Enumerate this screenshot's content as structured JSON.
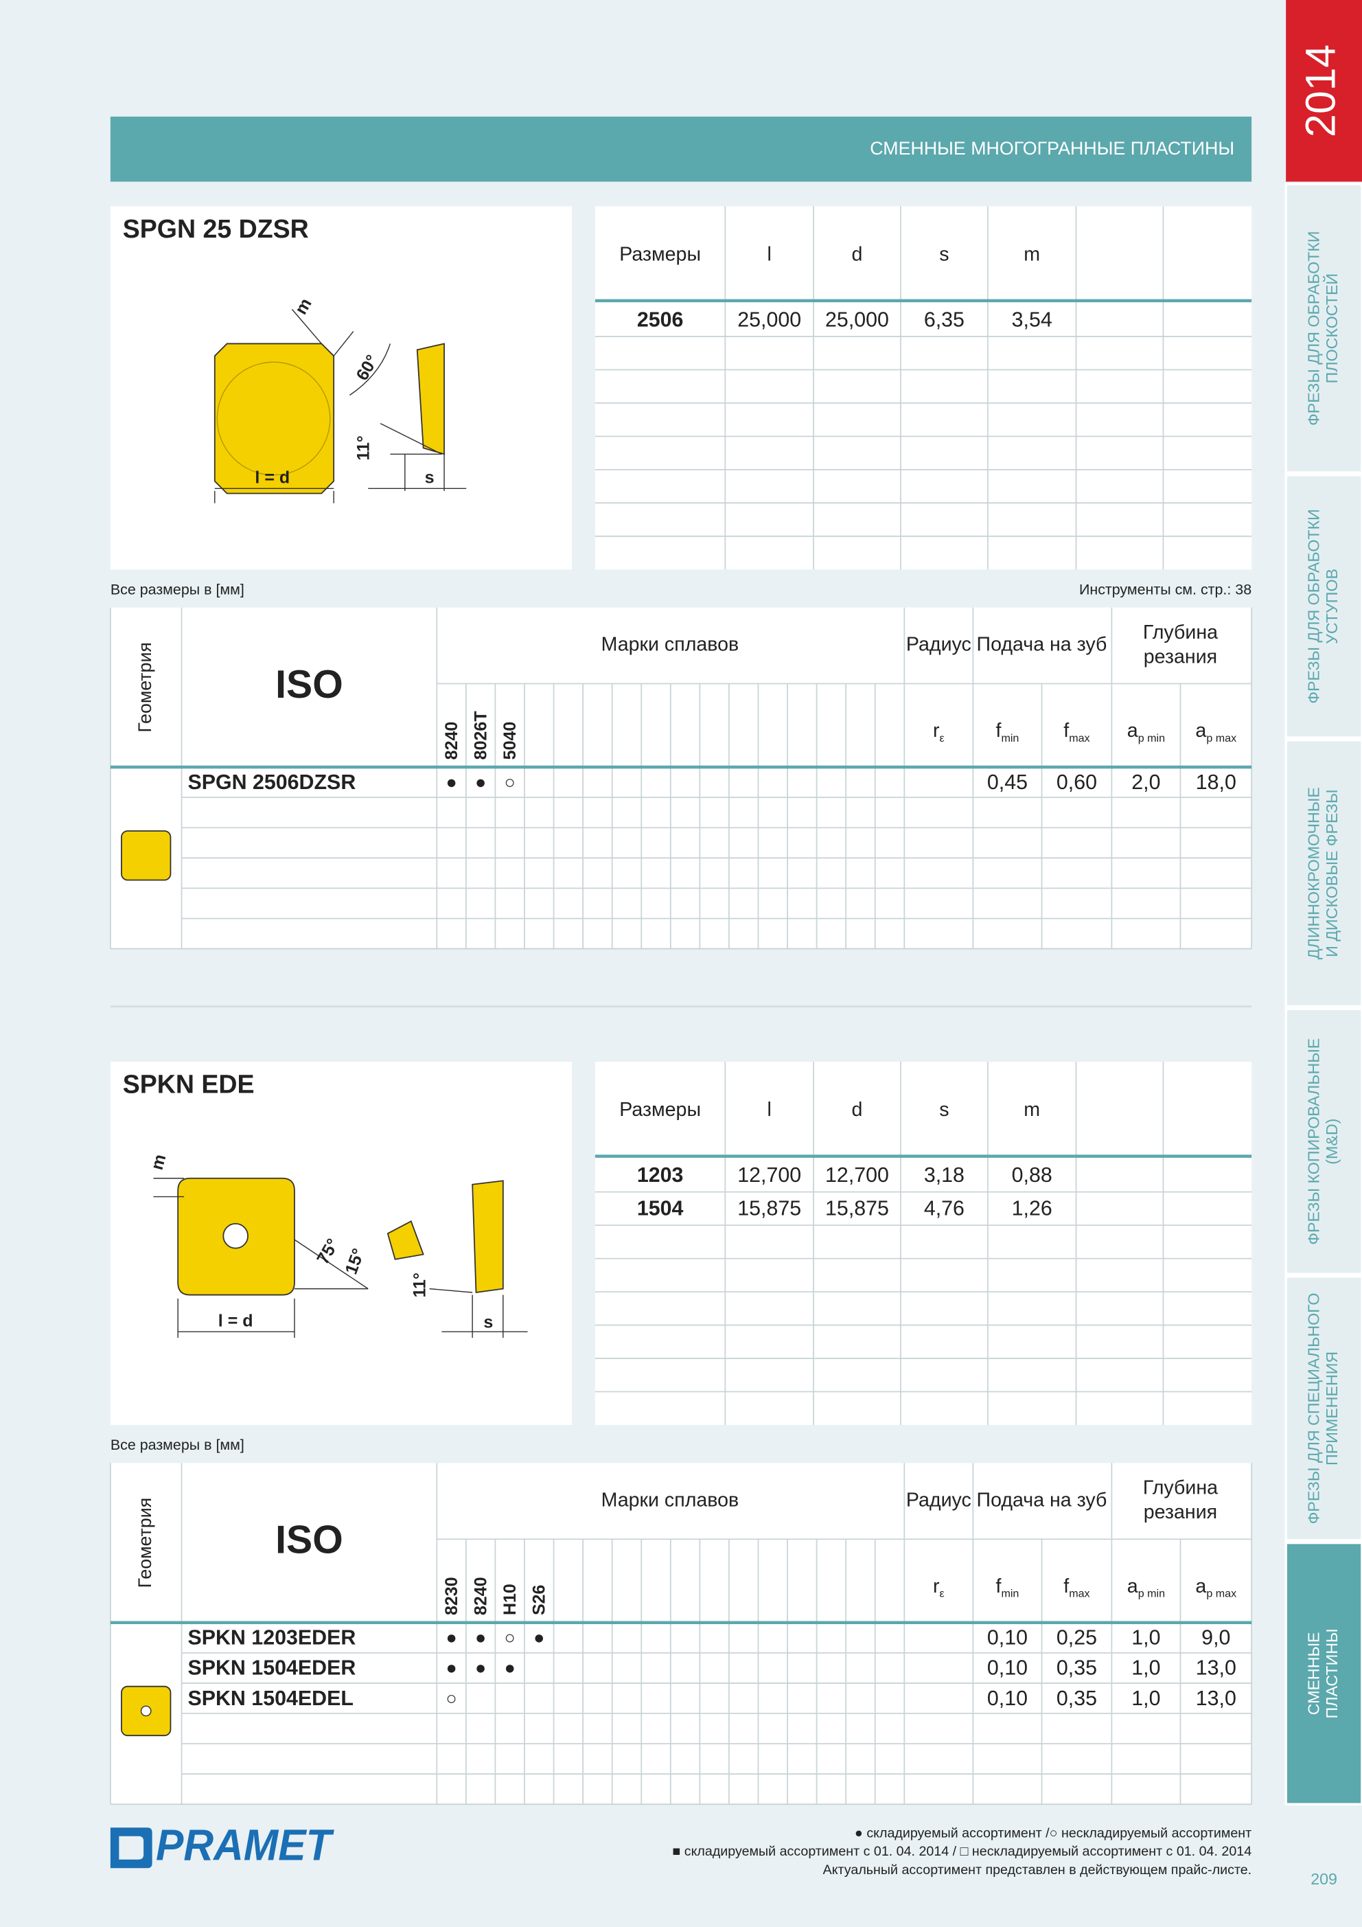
{
  "header": {
    "title": "СМЕННЫЕ МНОГОГРАННЫЕ ПЛАСТИНЫ",
    "year": "2014",
    "page_number": "209"
  },
  "sidebar": {
    "tabs": [
      [
        "ФРЕЗЫ ДЛЯ ОБРАБОТКИ",
        "ПЛОСКОСТЕЙ"
      ],
      [
        "ФРЕЗЫ ДЛЯ ОБРАБОТКИ",
        "УСТУПОВ"
      ],
      [
        "ДЛИННОКРОМОЧНЫЕ",
        "И ДИСКОВЫЕ ФРЕЗЫ"
      ],
      [
        "ФРЕЗЫ КОПИРОВАЛЬНЫЕ",
        "(M&D)"
      ],
      [
        "ФРЕЗЫ ДЛЯ СПЕЦИАЛЬНОГО",
        "ПРИМЕНЕНИЯ"
      ],
      [
        "СМЕННЫЕ",
        "ПЛАСТИНЫ"
      ]
    ],
    "active": 5
  },
  "sections": [
    {
      "title": "SPGN 25 DZSR",
      "drawing_labels": [
        "m",
        "60°",
        "11°",
        "l = d",
        "s"
      ],
      "dims": {
        "headers": [
          "Размеры",
          "l",
          "d",
          "s",
          "m"
        ],
        "rows": [
          [
            "2506",
            "25,000",
            "25,000",
            "6,35",
            "3,54"
          ]
        ]
      },
      "note_left": "Все размеры в [мм]",
      "note_right": "Инструменты см. стр.: 38",
      "table": {
        "geometry": "Геометрия",
        "iso": "ISO",
        "grades_title": "Марки сплавов",
        "radius": "Радиус",
        "feed": "Подача на зуб",
        "depth": [
          "Глубина",
          "резания"
        ],
        "subheaders": [
          {
            "symbol": "r",
            "sub": "ε"
          },
          {
            "symbol": "f",
            "sub": "min"
          },
          {
            "symbol": "f",
            "sub": "max"
          },
          {
            "symbol": "a",
            "sub": "p min"
          },
          {
            "symbol": "a",
            "sub": "p max"
          }
        ],
        "grades": [
          "8240",
          "8026T",
          "5040"
        ],
        "rows": [
          {
            "iso": "SPGN 2506DZSR",
            "availability": [
              "●",
              "●",
              "○"
            ],
            "values": [
              "0,45",
              "0,60",
              "2,0",
              "18,0"
            ]
          }
        ]
      }
    },
    {
      "title": "SPKN EDE",
      "drawing_labels": [
        "m",
        "75°",
        "15°",
        "11°",
        "l = d",
        "s"
      ],
      "dims": {
        "headers": [
          "Размеры",
          "l",
          "d",
          "s",
          "m"
        ],
        "rows": [
          [
            "1203",
            "12,700",
            "12,700",
            "3,18",
            "0,88"
          ],
          [
            "1504",
            "15,875",
            "15,875",
            "4,76",
            "1,26"
          ]
        ]
      },
      "note_left": "Все размеры в [мм]",
      "table": {
        "geometry": "Геометрия",
        "iso": "ISO",
        "grades_title": "Марки сплавов",
        "radius": "Радиус",
        "feed": "Подача на зуб",
        "depth": [
          "Глубина",
          "резания"
        ],
        "subheaders": [
          {
            "symbol": "r",
            "sub": "ε"
          },
          {
            "symbol": "f",
            "sub": "min"
          },
          {
            "symbol": "f",
            "sub": "max"
          },
          {
            "symbol": "a",
            "sub": "p min"
          },
          {
            "symbol": "a",
            "sub": "p max"
          }
        ],
        "grades": [
          "8230",
          "8240",
          "H10",
          "S26"
        ],
        "rows": [
          {
            "iso": "SPKN 1203EDER",
            "availability": [
              "●",
              "●",
              "○",
              "●"
            ],
            "values": [
              "0,10",
              "0,25",
              "1,0",
              "9,0"
            ]
          },
          {
            "iso": "SPKN 1504EDER",
            "availability": [
              "●",
              "●",
              "●",
              null
            ],
            "values": [
              "0,10",
              "0,35",
              "1,0",
              "13,0"
            ]
          },
          {
            "iso": "SPKN 1504EDEL",
            "availability": [
              "○",
              null,
              null,
              null
            ],
            "values": [
              "0,10",
              "0,35",
              "1,0",
              "13,0"
            ]
          }
        ]
      }
    }
  ],
  "footer": {
    "logo": "PRAMET",
    "legend": [
      "● складируемый ассортимент /○ нескладируемый ассортимент",
      "■  складируемый ассортимент с 01. 04. 2014 / □ нескладируемый ассортимент с 01. 04. 2014",
      "Актуальный ассортимент представлен в действующем прайс-листе."
    ]
  }
}
